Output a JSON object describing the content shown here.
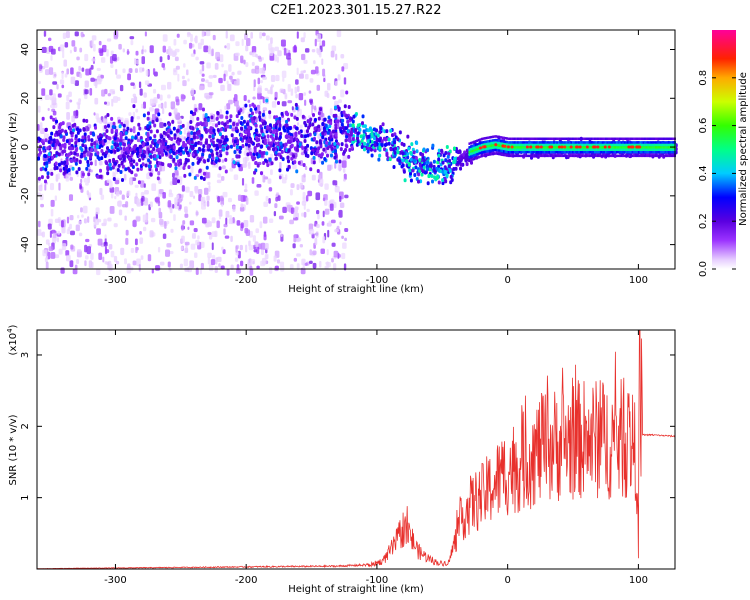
{
  "title": "C2E1.2023.301.15.27.R22",
  "chart_data": [
    {
      "type": "heatmap",
      "title": "C2E1.2023.301.15.27.R22",
      "xlabel": "Height of straight line (km)",
      "ylabel": "Frequency (Hz)",
      "xlim": [
        -360,
        128
      ],
      "ylim": [
        -50,
        48
      ],
      "x_ticks": [
        -300,
        -200,
        -100,
        0,
        100
      ],
      "x_tick_labels": [
        "-300",
        "-200",
        "-100",
        "0",
        "100"
      ],
      "y_ticks": [
        -40,
        -20,
        0,
        20,
        40
      ],
      "y_tick_labels": [
        "-40",
        "-20",
        "0",
        "20",
        "40"
      ],
      "colorbar": {
        "label": "Normalized spectral amplitude",
        "range": [
          0,
          1
        ],
        "ticks": [
          0.0,
          0.2,
          0.4,
          0.6,
          0.8
        ],
        "tick_labels": [
          "0.0",
          "0.2",
          "0.4",
          "0.6",
          "0.8"
        ]
      },
      "ridge": {
        "x": [
          -360,
          -300,
          -250,
          -200,
          -150,
          -120,
          -100,
          -80,
          -65,
          -50,
          -40,
          -30,
          -20,
          -10,
          0,
          30,
          60,
          90,
          128
        ],
        "freq": [
          0,
          0,
          1,
          5,
          5,
          6,
          4,
          -3,
          -6,
          -8,
          -5,
          -2,
          0,
          1,
          0,
          0,
          0,
          0,
          0
        ]
      }
    },
    {
      "type": "line",
      "xlabel": "Height of straight line (km)",
      "ylabel": "SNR (10 * v/v)",
      "y_scale_label": "(x10",
      "y_scale_exponent": "4",
      "y_scale_close": ")",
      "xlim": [
        -360,
        128
      ],
      "ylim": [
        0,
        3.35
      ],
      "x_ticks": [
        -300,
        -200,
        -100,
        0,
        100
      ],
      "x_tick_labels": [
        "-300",
        "-200",
        "-100",
        "0",
        "100"
      ],
      "y_ticks": [
        1,
        2,
        3
      ],
      "y_tick_labels": [
        "1",
        "2",
        "3"
      ],
      "color": "#e8302c",
      "envelope": {
        "x": [
          -360,
          -200,
          -130,
          -105,
          -95,
          -85,
          -80,
          -75,
          -68,
          -60,
          -55,
          -50,
          -45,
          -35,
          -28,
          -20,
          -10,
          0,
          10,
          25,
          40,
          55,
          70,
          85,
          95,
          100,
          103,
          110,
          128
        ],
        "y": [
          0.005,
          0.03,
          0.04,
          0.06,
          0.12,
          0.4,
          0.6,
          0.5,
          0.25,
          0.15,
          0.1,
          0.08,
          0.1,
          0.75,
          0.95,
          1.05,
          1.25,
          1.45,
          1.55,
          1.75,
          1.85,
          1.9,
          1.9,
          1.9,
          1.9,
          1.4,
          1.88,
          1.88,
          1.86
        ]
      }
    }
  ]
}
